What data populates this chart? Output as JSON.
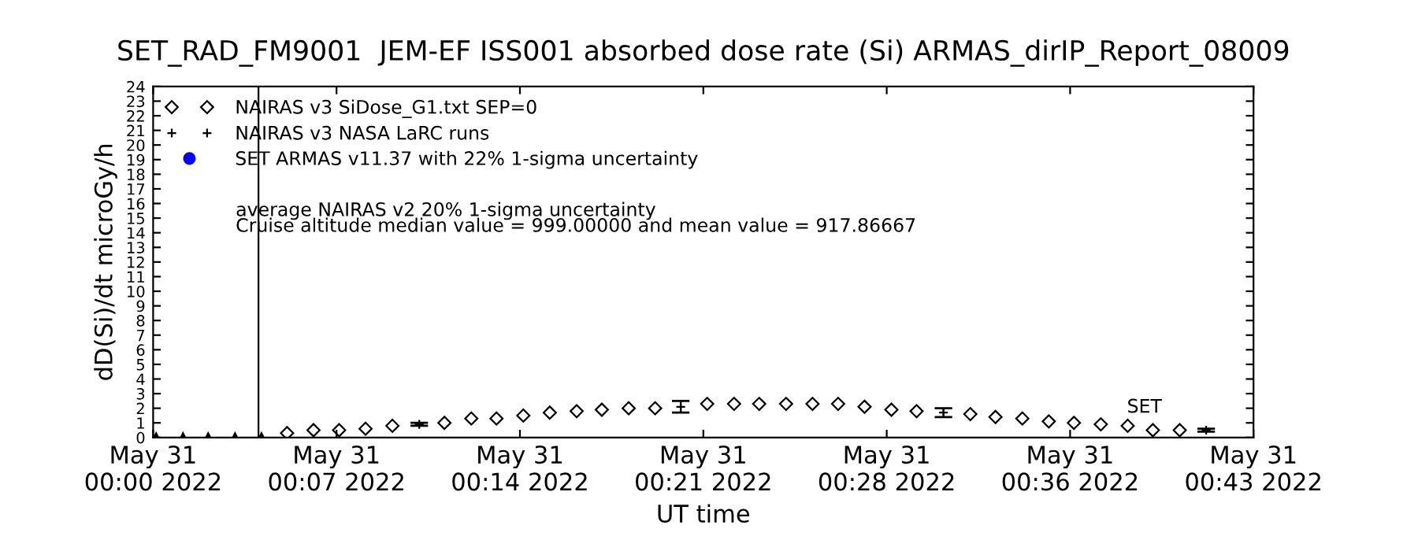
{
  "chart_data": {
    "type": "scatter",
    "title": "SET_RAD_FM9001  JEM-EF ISS001 absorbed dose rate (Si) ARMAS_dirIP_Report_08009",
    "xlabel": "UT time",
    "ylabel": "dD(Si)/dt microGy/h",
    "xlim": [
      "2022-05-31T00:00:00",
      "2022-05-31T00:43:00"
    ],
    "ylim": [
      0,
      24
    ],
    "xticks": [
      {
        "value": "2022-05-31T00:00:00",
        "label": "May 31\n00:00 2022"
      },
      {
        "value": "2022-05-31T00:07:10",
        "label": "May 31\n00:07 2022"
      },
      {
        "value": "2022-05-31T00:14:20",
        "label": "May 31\n00:14 2022"
      },
      {
        "value": "2022-05-31T00:21:30",
        "label": "May 31\n00:21 2022"
      },
      {
        "value": "2022-05-31T00:28:40",
        "label": "May 31\n00:28 2022"
      },
      {
        "value": "2022-05-31T00:35:50",
        "label": "May 31\n00:36 2022"
      },
      {
        "value": "2022-05-31T00:43:00",
        "label": "May 31\n00:43 2022"
      }
    ],
    "yticks": [
      0,
      1,
      2,
      3,
      4,
      5,
      6,
      7,
      8,
      9,
      10,
      11,
      12,
      13,
      14,
      15,
      16,
      17,
      18,
      19,
      20,
      21,
      22,
      23,
      24
    ],
    "grid": false,
    "legend": "top left",
    "ref_lines": [
      {
        "axis": "x",
        "value": "2022-05-31T00:04:07",
        "color": "#000000"
      }
    ],
    "annotations": [
      "average NAIRAS v2 20% 1-sigma uncertainty",
      "Cruise altitude median value = 999.00000 and mean value = 917.86667",
      "SET"
    ],
    "series": [
      {
        "name": "NAIRAS v3 SiDose_G1.txt SEP=0",
        "color": "#000000",
        "marker": "diamond",
        "x": [
          "2022-05-31T00:05:14",
          "2022-05-31T00:06:16",
          "2022-05-31T00:07:16",
          "2022-05-31T00:08:18",
          "2022-05-31T00:09:21",
          "2022-05-31T00:11:23",
          "2022-05-31T00:12:26",
          "2022-05-31T00:13:25",
          "2022-05-31T00:14:28",
          "2022-05-31T00:15:30",
          "2022-05-31T00:16:33",
          "2022-05-31T00:17:32",
          "2022-05-31T00:18:35",
          "2022-05-31T00:19:37",
          "2022-05-31T00:21:39",
          "2022-05-31T00:22:42",
          "2022-05-31T00:23:41",
          "2022-05-31T00:24:44",
          "2022-05-31T00:25:46",
          "2022-05-31T00:26:46",
          "2022-05-31T00:27:48",
          "2022-05-31T00:28:51",
          "2022-05-31T00:29:50",
          "2022-05-31T00:31:56",
          "2022-05-31T00:32:55",
          "2022-05-31T00:33:58",
          "2022-05-31T00:35:00",
          "2022-05-31T00:35:59",
          "2022-05-31T00:37:02",
          "2022-05-31T00:38:05",
          "2022-05-31T00:39:04",
          "2022-05-31T00:40:07"
        ],
        "values": [
          0.3,
          0.5,
          0.5,
          0.6,
          0.8,
          1.0,
          1.3,
          1.3,
          1.5,
          1.7,
          1.8,
          1.9,
          2.0,
          2.0,
          2.3,
          2.3,
          2.3,
          2.3,
          2.3,
          2.3,
          2.1,
          1.9,
          1.8,
          1.6,
          1.4,
          1.3,
          1.1,
          1.0,
          0.9,
          0.8,
          0.5,
          0.5
        ]
      },
      {
        "name": "NAIRAS v3 NASA LaRC runs",
        "color": "#000000",
        "marker": "cross",
        "x": [
          "2022-05-31T00:10:24",
          "2022-05-31T00:20:37",
          "2022-05-31T00:30:53",
          "2022-05-31T00:41:09"
        ],
        "values": [
          0.9,
          2.1,
          1.7,
          0.5
        ],
        "errors": [
          0.1,
          0.4,
          0.3,
          0.1
        ]
      },
      {
        "name": "SET ARMAS v11.37 with 22% 1-sigma uncertainty",
        "color": "#0000ff",
        "marker": "circle"
      },
      {
        "color": "#000000",
        "marker": "triangle",
        "x": [
          "2022-05-31T00:00:07",
          "2022-05-31T00:01:10",
          "2022-05-31T00:02:09",
          "2022-05-31T00:03:12",
          "2022-05-31T00:04:14"
        ],
        "values": [
          0,
          0,
          0,
          0,
          0
        ]
      }
    ]
  }
}
